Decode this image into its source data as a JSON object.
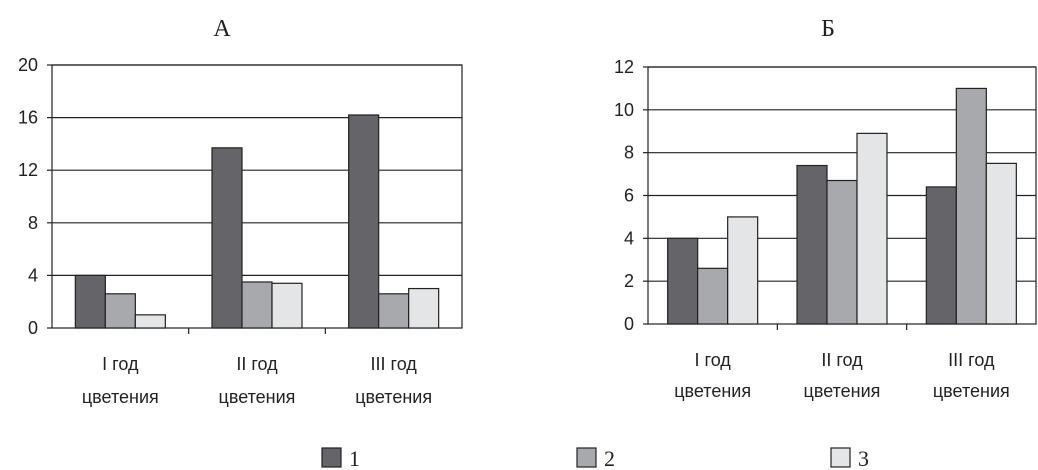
{
  "series_colors": [
    "#646469",
    "#a8a9ad",
    "#e4e5e7"
  ],
  "legend": {
    "items": [
      "1",
      "2",
      "3"
    ]
  },
  "chart_data": [
    {
      "type": "bar",
      "title": "А",
      "categories": [
        [
          "I год",
          "цветения"
        ],
        [
          "II год",
          "цветения"
        ],
        [
          "III год",
          "цветения"
        ]
      ],
      "series": [
        {
          "name": "1",
          "values": [
            4.0,
            13.7,
            16.2
          ]
        },
        {
          "name": "2",
          "values": [
            2.6,
            3.5,
            2.6
          ]
        },
        {
          "name": "3",
          "values": [
            1.0,
            3.4,
            3.0
          ]
        }
      ],
      "ylim": [
        0,
        20
      ],
      "yticks": [
        0,
        4,
        8,
        12,
        16,
        20
      ],
      "grid": true,
      "legend_position": "bottom"
    },
    {
      "type": "bar",
      "title": "Б",
      "categories": [
        [
          "I год",
          "цветения"
        ],
        [
          "II год",
          "цветения"
        ],
        [
          "III год",
          "цветения"
        ]
      ],
      "series": [
        {
          "name": "1",
          "values": [
            4.0,
            7.4,
            6.4
          ]
        },
        {
          "name": "2",
          "values": [
            2.6,
            6.7,
            11.0
          ]
        },
        {
          "name": "3",
          "values": [
            5.0,
            8.9,
            7.5
          ]
        }
      ],
      "ylim": [
        0,
        12
      ],
      "yticks": [
        0,
        2,
        4,
        6,
        8,
        10,
        12
      ],
      "grid": true,
      "legend_position": "bottom"
    }
  ]
}
